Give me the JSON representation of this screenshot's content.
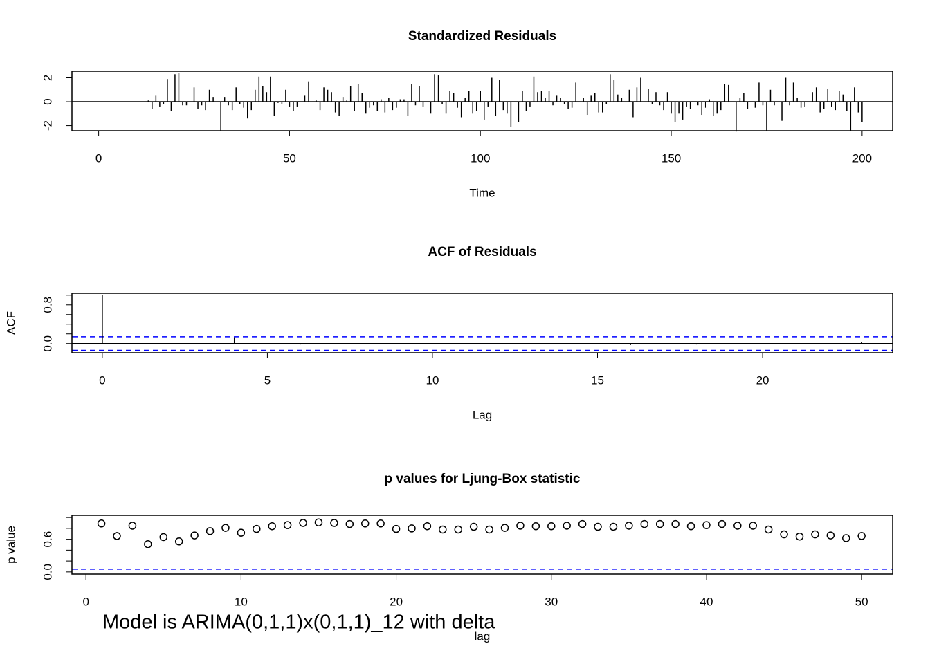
{
  "chart_data": [
    {
      "type": "spike",
      "title": "Standardized Residuals",
      "xlabel": "Time",
      "x": [
        1,
        2,
        3,
        4,
        5,
        6,
        7,
        8,
        9,
        10,
        11,
        12,
        13,
        14,
        15,
        16,
        17,
        18,
        19,
        20,
        21,
        22,
        23,
        24,
        25,
        26,
        27,
        28,
        29,
        30,
        31,
        32,
        33,
        34,
        35,
        36,
        37,
        38,
        39,
        40,
        41,
        42,
        43,
        44,
        45,
        46,
        47,
        48,
        49,
        50,
        51,
        52,
        53,
        54,
        55,
        56,
        57,
        58,
        59,
        60,
        61,
        62,
        63,
        64,
        65,
        66,
        67,
        68,
        69,
        70,
        71,
        72,
        73,
        74,
        75,
        76,
        77,
        78,
        79,
        80,
        81,
        82,
        83,
        84,
        85,
        86,
        87,
        88,
        89,
        90,
        91,
        92,
        93,
        94,
        95,
        96,
        97,
        98,
        99,
        100,
        101,
        102,
        103,
        104,
        105,
        106,
        107,
        108,
        109,
        110,
        111,
        112,
        113,
        114,
        115,
        116,
        117,
        118,
        119,
        120,
        121,
        122,
        123,
        124,
        125,
        126,
        127,
        128,
        129,
        130,
        131,
        132,
        133,
        134,
        135,
        136,
        137,
        138,
        139,
        140,
        141,
        142,
        143,
        144,
        145,
        146,
        147,
        148,
        149,
        150,
        151,
        152,
        153,
        154,
        155,
        156,
        157,
        158,
        159,
        160,
        161,
        162,
        163,
        164,
        165,
        166,
        167,
        168,
        169,
        170,
        171,
        172,
        173,
        174,
        175,
        176,
        177,
        178,
        179,
        180,
        181,
        182,
        183,
        184,
        185,
        186,
        187,
        188,
        189,
        190,
        191,
        192,
        193,
        194,
        195,
        196,
        197,
        198,
        199,
        200
      ],
      "values": [
        0,
        0,
        0,
        0,
        0,
        0,
        0,
        0,
        0,
        0,
        0,
        0,
        0.1,
        -0.6,
        0.5,
        -0.4,
        -0.2,
        1.9,
        -0.8,
        2.3,
        2.4,
        -0.3,
        -0.3,
        0,
        1.2,
        -0.6,
        -0.3,
        -0.7,
        1,
        0.4,
        0,
        -2.4,
        0.4,
        -0.3,
        -0.7,
        1.2,
        -0.2,
        -0.5,
        -1.4,
        -0.7,
        1,
        2.1,
        1.3,
        0.8,
        2.1,
        -1.2,
        -0.1,
        -0.2,
        1,
        -0.4,
        -0.8,
        -0.4,
        0,
        0.5,
        1.7,
        0,
        0.1,
        -0.7,
        1.2,
        1,
        0.8,
        -0.9,
        -1.2,
        0.4,
        0.1,
        1.3,
        -0.8,
        1.5,
        0.7,
        -1,
        -0.5,
        -0.3,
        -0.8,
        0.2,
        -0.9,
        0.3,
        -0.7,
        -0.5,
        0.2,
        0.2,
        -1.2,
        1.5,
        -0.3,
        1.3,
        -0.4,
        0,
        -1,
        2.3,
        2.2,
        -0.2,
        -1,
        0.9,
        0.7,
        -0.5,
        -1.3,
        0.3,
        0.9,
        -1,
        -0.8,
        0.9,
        -1.5,
        -0.4,
        2,
        -1.2,
        1.8,
        -0.7,
        -1,
        -2.1,
        0,
        -1.7,
        0.9,
        -0.8,
        -0.4,
        2.1,
        0.8,
        0.9,
        0.3,
        0.9,
        -0.3,
        0.5,
        0.3,
        -0.2,
        -0.6,
        -0.5,
        1.6,
        0,
        0.3,
        -1.1,
        0.5,
        0.7,
        -0.9,
        -0.9,
        -0.2,
        2.3,
        1.8,
        0.6,
        0.3,
        0,
        1,
        -1.3,
        1.2,
        2,
        0,
        1.1,
        -0.2,
        0.8,
        -0.3,
        -0.7,
        0.8,
        -1,
        -1.7,
        -1,
        -1.5,
        -0.4,
        -0.6,
        0,
        -0.3,
        -1.1,
        -0.5,
        0.2,
        -1.2,
        -1,
        -0.7,
        1.5,
        1.4,
        0,
        -2.5,
        0.3,
        0.7,
        -0.6,
        0,
        -0.5,
        1.6,
        -0.3,
        -2.4,
        1,
        -0.3,
        0,
        -1.6,
        2,
        -0.3,
        1.6,
        0.3,
        -0.5,
        -0.4,
        0,
        0.8,
        1.2,
        -0.9,
        -0.6,
        1.1,
        -0.4,
        -0.7,
        0.9,
        0.6,
        -0.8,
        -2.4,
        1.2,
        -0.9,
        -1.7
      ],
      "color": "#000000",
      "hline": 0,
      "xlim": [
        -7,
        208
      ],
      "xticks": [
        0,
        50,
        100,
        150,
        200
      ],
      "ylim": [
        -2.43,
        2.55
      ],
      "yticks": [
        -2,
        0,
        2
      ]
    },
    {
      "type": "spike",
      "title": "ACF of Residuals",
      "xlabel": "Lag",
      "ylabel": "ACF",
      "x": [
        0,
        1,
        2,
        3,
        4,
        5,
        6,
        7,
        8,
        9,
        10,
        11,
        12,
        13,
        14,
        15,
        16,
        17,
        18,
        19,
        20,
        21,
        22,
        23
      ],
      "values": [
        1,
        -0.01,
        0,
        0,
        0.13,
        0.01,
        -0.02,
        0.01,
        0,
        0.01,
        -0.01,
        0.01,
        0.01,
        0.01,
        0,
        -0.01,
        -0.03,
        0.01,
        -0.02,
        -0.01,
        -0.01,
        0.01,
        -0.01,
        0.03
      ],
      "color": "#000000",
      "hline": 0,
      "ci_lines": [
        0.14,
        -0.14
      ],
      "ci_color": "#0000ff",
      "xlim": [
        -0.92,
        23.94
      ],
      "xticks": [
        0,
        5,
        10,
        15,
        20
      ],
      "ylim": [
        -0.19,
        1.04
      ],
      "yticks": [
        {
          "value": 0,
          "label": "0.0"
        },
        {
          "value": 0.8,
          "label": "0.8"
        }
      ],
      "yminorticks": [
        0.2,
        0.4,
        0.6,
        1.0
      ]
    },
    {
      "type": "scatter",
      "title": "p values for Ljung-Box statistic",
      "xlabel": "lag",
      "ylabel": "p value",
      "x": [
        1,
        2,
        3,
        4,
        5,
        6,
        7,
        8,
        9,
        10,
        11,
        12,
        13,
        14,
        15,
        16,
        17,
        18,
        19,
        20,
        21,
        22,
        23,
        24,
        25,
        26,
        27,
        28,
        29,
        30,
        31,
        32,
        33,
        34,
        35,
        36,
        37,
        38,
        39,
        40,
        41,
        42,
        43,
        44,
        45,
        46,
        47,
        48,
        49,
        50
      ],
      "values": [
        0.89,
        0.66,
        0.85,
        0.51,
        0.64,
        0.56,
        0.67,
        0.75,
        0.81,
        0.72,
        0.79,
        0.84,
        0.86,
        0.9,
        0.91,
        0.9,
        0.88,
        0.89,
        0.89,
        0.79,
        0.8,
        0.84,
        0.78,
        0.78,
        0.83,
        0.78,
        0.81,
        0.85,
        0.84,
        0.84,
        0.85,
        0.88,
        0.83,
        0.83,
        0.85,
        0.88,
        0.88,
        0.88,
        0.84,
        0.86,
        0.88,
        0.85,
        0.85,
        0.78,
        0.69,
        0.65,
        0.69,
        0.67,
        0.62,
        0.66
      ],
      "color": "#000000",
      "ci_lines": [
        0.05
      ],
      "ci_color": "#0000ff",
      "xlim": [
        -0.9,
        52
      ],
      "xticks": [
        0,
        10,
        20,
        30,
        40,
        50
      ],
      "ylim": [
        -0.04,
        1.04
      ],
      "yticks": [
        {
          "value": 0,
          "label": "0.0"
        },
        {
          "value": 0.6,
          "label": "0.6"
        }
      ],
      "yminorticks": [
        0.2,
        0.4,
        0.8,
        1.0
      ],
      "annotation": "Model is ARIMA(0,1,1)x(0,1,1)_12 with delta",
      "annotation_color": "#ff0000"
    }
  ]
}
